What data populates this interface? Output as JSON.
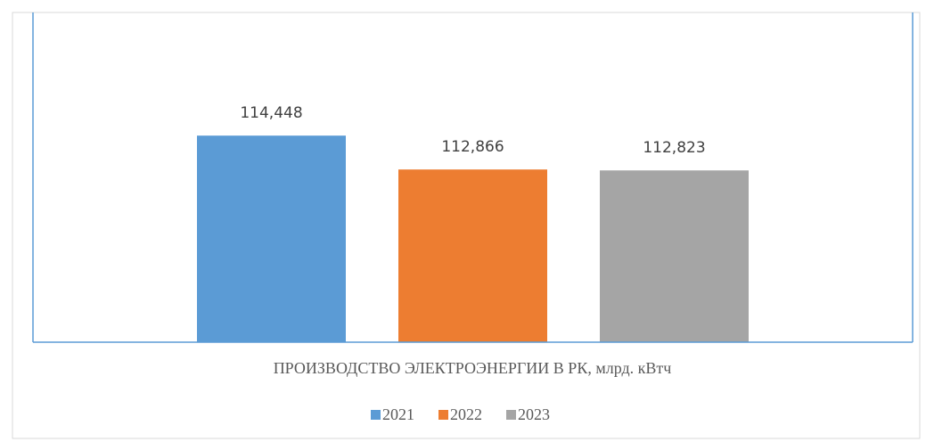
{
  "chart_data": {
    "type": "bar",
    "x_label": "ПРОИЗВОДСТВО ЭЛЕКТРОЭНЕРГИИ В РК, млрд. кВтч",
    "categories": [
      null
    ],
    "series": [
      {
        "name": "2021",
        "color": "#5b9bd5",
        "values": [
          114.448
        ],
        "value_labels": [
          "114,448"
        ]
      },
      {
        "name": "2022",
        "color": "#ed7d31",
        "values": [
          112.866
        ],
        "value_labels": [
          "112,866"
        ]
      },
      {
        "name": "2023",
        "color": "#a5a5a5",
        "values": [
          112.823
        ],
        "value_labels": [
          "112,823"
        ]
      }
    ],
    "ylim": [
      104.8,
      120.2
    ],
    "legend": "bottom"
  }
}
